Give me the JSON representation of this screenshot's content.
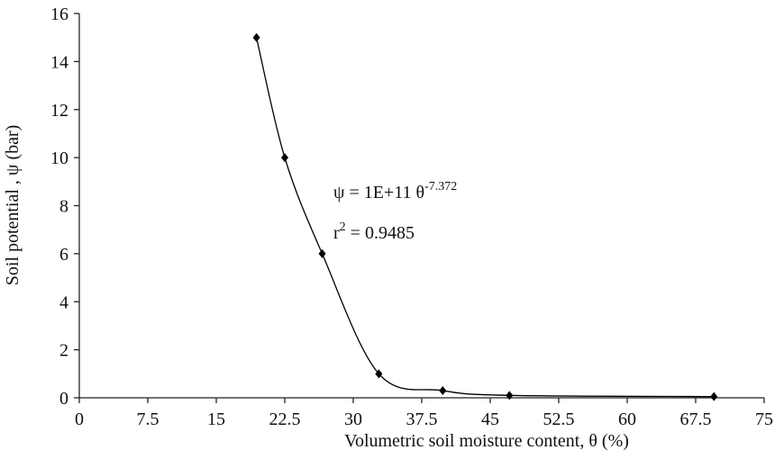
{
  "chart_data": {
    "type": "scatter",
    "x_label": "Volumetric soil moisture content, θ (%)",
    "y_label": "Soil potential , ψ  (bar)",
    "series": [
      {
        "x": [
          19.4,
          22.5,
          26.6,
          32.8,
          39.8,
          47.1,
          69.5
        ],
        "values": [
          15,
          10,
          6,
          1,
          0.3,
          0.1,
          0.05
        ],
        "color": "#000000"
      }
    ],
    "smooth_line": true,
    "xlim": [
      0,
      75
    ],
    "xticks": [
      0,
      7.5,
      15,
      22.5,
      30,
      37.5,
      45,
      52.5,
      60,
      67.5,
      75
    ],
    "ylim": [
      0,
      16
    ],
    "yticks": [
      0,
      2,
      4,
      6,
      8,
      10,
      12,
      14,
      16
    ],
    "grid": false,
    "equation": {
      "text": "ψ = 1E+11 θ",
      "exponent": "-7.372"
    },
    "r_squared": {
      "text": "r",
      "exponent": "2",
      "rest": " = 0.9485"
    }
  }
}
